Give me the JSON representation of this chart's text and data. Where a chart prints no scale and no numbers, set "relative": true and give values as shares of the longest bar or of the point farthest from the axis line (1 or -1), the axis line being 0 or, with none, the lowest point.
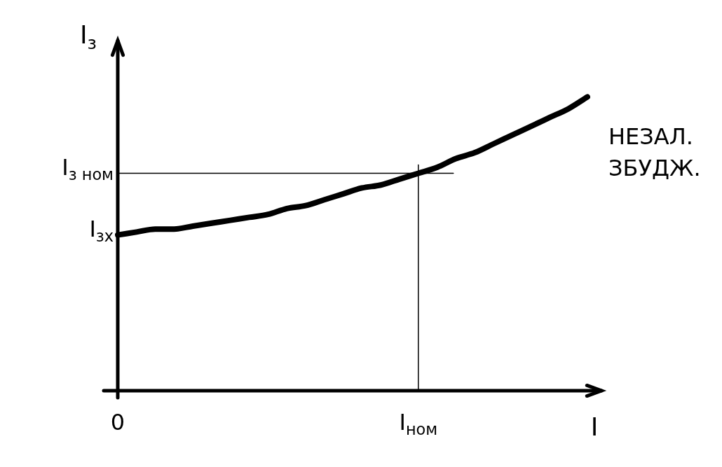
{
  "chart_data": {
    "type": "line",
    "xlabel": "I",
    "ylabel": "I$_{з}$",
    "relative": true,
    "color": "#000000",
    "marker": "none",
    "legend": false,
    "categories": [
      "0",
      null,
      null,
      null,
      null,
      null,
      null,
      null,
      null,
      null,
      null,
      null,
      null,
      null,
      null,
      null,
      "I$_{ном}$",
      null,
      null,
      null,
      null,
      null,
      null,
      null,
      null,
      null
    ],
    "values": [
      0.53,
      0.54,
      0.55,
      0.55,
      0.56,
      0.57,
      0.58,
      0.59,
      0.6,
      0.62,
      0.63,
      0.65,
      0.67,
      0.69,
      0.7,
      0.72,
      0.74,
      0.76,
      0.79,
      0.81,
      0.84,
      0.87,
      0.9,
      0.93,
      0.96,
      1
    ],
    "ref_lines": [
      {
        "axis": "y",
        "value": 0.74,
        "label": "I$_{з ном}$"
      },
      {
        "axis": "x",
        "value": "I$_{ном}$"
      }
    ],
    "annotations": [
      {
        "text": "I$_{зх}$",
        "x": "0",
        "y": 0.53
      },
      "НЕЗАЛ. ЗБУДЖ."
    ]
  }
}
